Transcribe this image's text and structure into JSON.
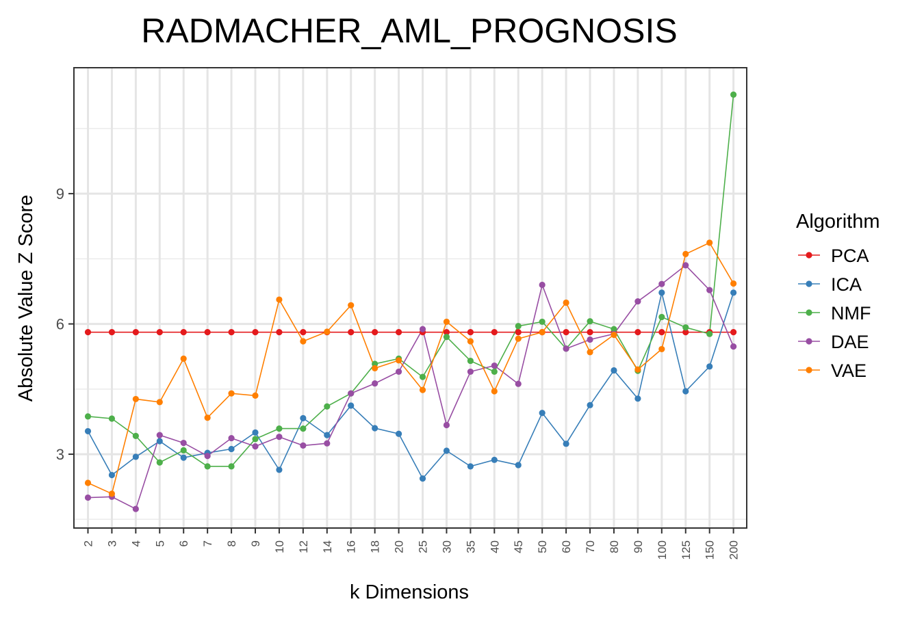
{
  "chart_data": {
    "type": "line",
    "title": "RADMACHER_AML_PROGNOSIS",
    "xlabel": "k Dimensions",
    "ylabel": "Absolute Value Z Score",
    "categories": [
      "2",
      "3",
      "4",
      "5",
      "6",
      "7",
      "8",
      "9",
      "10",
      "12",
      "14",
      "16",
      "18",
      "20",
      "25",
      "30",
      "35",
      "40",
      "45",
      "50",
      "60",
      "70",
      "80",
      "90",
      "100",
      "125",
      "150",
      "200"
    ],
    "y_ticks": [
      3,
      6,
      9
    ],
    "ylim": [
      1.3,
      11.9
    ],
    "grid": true,
    "legend": {
      "title": "Algorithm",
      "position": "right"
    },
    "series": [
      {
        "name": "PCA",
        "color": "#e41a1c",
        "values": [
          5.81,
          5.81,
          5.81,
          5.81,
          5.81,
          5.81,
          5.81,
          5.81,
          5.81,
          5.81,
          5.81,
          5.81,
          5.81,
          5.81,
          5.81,
          5.81,
          5.81,
          5.81,
          5.81,
          5.81,
          5.81,
          5.81,
          5.81,
          5.81,
          5.81,
          5.81,
          5.81,
          5.81
        ]
      },
      {
        "name": "ICA",
        "color": "#377eb8",
        "values": [
          3.53,
          2.52,
          2.94,
          3.3,
          2.92,
          3.03,
          3.12,
          3.5,
          2.64,
          3.83,
          3.44,
          4.12,
          3.6,
          3.47,
          2.44,
          3.08,
          2.72,
          2.87,
          2.75,
          3.95,
          3.24,
          4.13,
          4.93,
          4.28,
          6.72,
          4.45,
          5.02,
          6.72
        ]
      },
      {
        "name": "NMF",
        "color": "#4daf4a",
        "values": [
          3.87,
          3.82,
          3.42,
          2.81,
          3.09,
          2.72,
          2.72,
          3.35,
          3.59,
          3.59,
          4.1,
          4.4,
          5.08,
          5.2,
          4.78,
          5.7,
          5.15,
          4.9,
          5.95,
          6.05,
          5.43,
          6.06,
          5.88,
          4.92,
          6.16,
          5.92,
          5.77,
          11.28
        ]
      },
      {
        "name": "DAE",
        "color": "#984ea3",
        "values": [
          2.0,
          2.02,
          1.74,
          3.44,
          3.26,
          2.96,
          3.37,
          3.18,
          3.4,
          3.2,
          3.25,
          4.4,
          4.63,
          4.9,
          5.88,
          3.67,
          4.9,
          5.04,
          4.62,
          6.9,
          5.43,
          5.64,
          5.77,
          6.52,
          6.92,
          7.35,
          6.78,
          5.48
        ]
      },
      {
        "name": "VAE",
        "color": "#ff7f00",
        "values": [
          2.34,
          2.09,
          4.27,
          4.2,
          5.2,
          3.84,
          4.4,
          4.35,
          6.56,
          5.6,
          5.82,
          6.43,
          4.98,
          5.16,
          4.48,
          6.05,
          5.6,
          4.45,
          5.66,
          5.81,
          6.49,
          5.35,
          5.75,
          4.95,
          5.42,
          7.61,
          7.87,
          6.93
        ]
      }
    ]
  }
}
